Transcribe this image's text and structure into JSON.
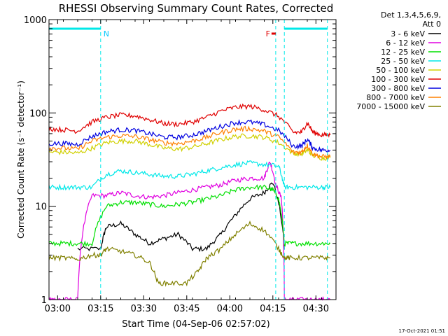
{
  "chart_data": {
    "type": "line",
    "title": "RHESSI Observing Summary Count Rates, Corrected",
    "xlabel": "Start Time (04-Sep-06 02:57:02)",
    "ylabel": "Corrected Count Rate (s⁻¹ detector⁻¹)",
    "yscale": "log",
    "ylim": [
      1,
      1000
    ],
    "xlim_minutes_after_0257": [
      0,
      100
    ],
    "x_ticks": [
      "03:00",
      "03:15",
      "03:30",
      "03:45",
      "04:00",
      "04:15",
      "04:30"
    ],
    "x_ticks_minutes": [
      3,
      18,
      33,
      48,
      63,
      78,
      93
    ],
    "y_ticks": [
      "1",
      "10",
      "100",
      "1000"
    ],
    "y_ticks_values": [
      1,
      10,
      100,
      1000
    ],
    "legend_header": [
      "Det 1,3,4,5,6,9,",
      "Att 0"
    ],
    "legend_placement": "right",
    "timestamp": "17-Oct-2021 01:51",
    "annotations": [
      {
        "label": "N",
        "x_minutes": 18,
        "color": "#00c8ff"
      },
      {
        "label": "F",
        "x_minutes": 79,
        "color": "#e00000"
      }
    ],
    "night_segments_minutes": [
      [
        0,
        18
      ],
      [
        82,
        97
      ]
    ],
    "series": [
      {
        "name": "3 - 6 keV",
        "color": "#000000",
        "x": [
          10,
          18,
          20,
          25,
          30,
          35,
          40,
          45,
          50,
          55,
          60,
          65,
          70,
          75,
          78,
          82
        ],
        "y": [
          3.5,
          3.5,
          6,
          6.5,
          5,
          4,
          4.5,
          5,
          3.5,
          3.5,
          5,
          8,
          12,
          14,
          18,
          3.5
        ]
      },
      {
        "name": "6 - 12 keV",
        "color": "#e000e0",
        "x": [
          0,
          2,
          5,
          10,
          15,
          20,
          25,
          30,
          35,
          40,
          45,
          50,
          55,
          60,
          65,
          70,
          75,
          77,
          79,
          81,
          82,
          85,
          90,
          95,
          98
        ],
        "y": [
          1,
          1,
          1,
          1,
          13,
          13,
          14,
          13,
          12.5,
          13,
          14,
          15,
          16,
          17,
          19,
          20,
          20,
          30,
          17,
          12,
          1,
          1,
          1,
          1,
          1
        ]
      },
      {
        "name": "12 - 25 keV",
        "color": "#00e000",
        "x": [
          0,
          5,
          10,
          15,
          20,
          25,
          30,
          35,
          40,
          45,
          50,
          55,
          60,
          65,
          70,
          75,
          78,
          80,
          82,
          85,
          90,
          95,
          98
        ],
        "y": [
          4,
          4,
          4,
          4,
          10,
          11,
          11,
          10.5,
          10,
          10.5,
          11,
          12,
          13,
          15,
          16,
          16,
          15,
          12,
          4,
          4,
          4,
          4,
          4
        ]
      },
      {
        "name": "25 - 50 keV",
        "color": "#00e8e8",
        "x": [
          0,
          5,
          10,
          15,
          20,
          25,
          30,
          35,
          40,
          45,
          50,
          55,
          60,
          65,
          70,
          75,
          80,
          82,
          85,
          90,
          95,
          98
        ],
        "y": [
          16,
          16,
          16,
          16,
          22,
          24,
          23,
          22,
          21,
          21,
          22,
          24,
          26,
          28,
          29,
          28,
          27,
          16,
          16,
          16,
          16,
          16
        ]
      },
      {
        "name": "50 - 100 keV",
        "color": "#d0d000",
        "x": [
          0,
          5,
          10,
          15,
          20,
          25,
          30,
          35,
          40,
          45,
          50,
          55,
          60,
          65,
          70,
          75,
          80,
          85,
          88,
          90,
          92,
          95,
          98
        ],
        "y": [
          38,
          38,
          37,
          42,
          48,
          50,
          50,
          46,
          42,
          41,
          43,
          47,
          52,
          56,
          57,
          55,
          48,
          37,
          36,
          40,
          35,
          33,
          33
        ]
      },
      {
        "name": "100 - 300 keV",
        "color": "#e00000",
        "x": [
          0,
          5,
          10,
          15,
          20,
          25,
          30,
          35,
          40,
          45,
          50,
          55,
          60,
          65,
          70,
          75,
          80,
          85,
          88,
          90,
          92,
          95,
          98
        ],
        "y": [
          68,
          66,
          64,
          80,
          90,
          95,
          93,
          85,
          77,
          76,
          80,
          90,
          105,
          115,
          118,
          108,
          92,
          62,
          62,
          78,
          62,
          58,
          58
        ]
      },
      {
        "name": "300 - 800 keV",
        "color": "#0000e0",
        "x": [
          0,
          5,
          10,
          15,
          20,
          25,
          30,
          35,
          40,
          45,
          50,
          55,
          60,
          65,
          70,
          75,
          80,
          85,
          88,
          90,
          92,
          95,
          98
        ],
        "y": [
          47,
          47,
          46,
          56,
          63,
          66,
          65,
          60,
          55,
          55,
          58,
          64,
          72,
          79,
          80,
          75,
          65,
          44,
          44,
          52,
          42,
          40,
          40
        ]
      },
      {
        "name": "800 - 7000 keV",
        "color": "#ff8000",
        "x": [
          0,
          5,
          10,
          15,
          20,
          25,
          30,
          35,
          40,
          45,
          50,
          55,
          60,
          65,
          70,
          75,
          80,
          85,
          88,
          90,
          92,
          95,
          98
        ],
        "y": [
          42,
          42,
          41,
          50,
          55,
          57,
          56,
          52,
          48,
          47,
          50,
          55,
          62,
          67,
          68,
          64,
          55,
          38,
          38,
          45,
          36,
          34,
          34
        ]
      },
      {
        "name": "7000 - 15000 keV",
        "color": "#808000",
        "x": [
          0,
          5,
          10,
          15,
          18,
          20,
          25,
          30,
          35,
          38,
          42,
          48,
          52,
          55,
          60,
          65,
          70,
          75,
          80,
          82,
          85,
          90,
          95,
          98
        ],
        "y": [
          2.8,
          2.8,
          2.7,
          3,
          3,
          3.5,
          3.3,
          3,
          2.5,
          1.5,
          1.5,
          1.5,
          2,
          2.8,
          3.5,
          5,
          6.5,
          5.5,
          3.5,
          2.8,
          2.8,
          2.8,
          2.8,
          2.8
        ]
      }
    ]
  }
}
